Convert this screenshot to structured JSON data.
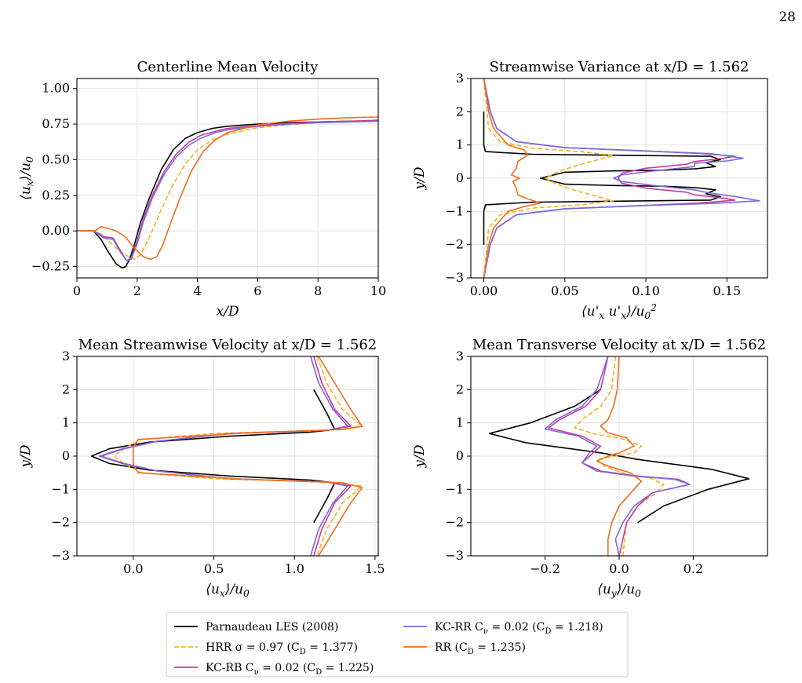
{
  "page_number": "28",
  "chart_data": [
    {
      "type": "line",
      "title": "Centerline Mean Velocity",
      "xlabel": "x/D",
      "ylabel": "⟨u_x⟩/u_0",
      "xlim": [
        0,
        10
      ],
      "ylim": [
        -0.33,
        1.07
      ],
      "xticks": [
        0,
        2,
        4,
        6,
        8,
        10
      ],
      "xtick_labels": [
        "0",
        "2",
        "4",
        "6",
        "8",
        "10"
      ],
      "yticks": [
        -0.25,
        0.0,
        0.25,
        0.5,
        0.75,
        1.0
      ],
      "ytick_labels": [
        "−0.25",
        "0.00",
        "0.25",
        "0.50",
        "0.75",
        "1.00"
      ],
      "grid": true,
      "series": [
        {
          "key": "les",
          "x": [
            0,
            0.55,
            0.8,
            1.05,
            1.3,
            1.5,
            1.62,
            1.75,
            1.9,
            2.1,
            2.4,
            2.8,
            3.2,
            3.6,
            4.0,
            4.5,
            5.0,
            6.0,
            7.0,
            8.0,
            9.0,
            10.0
          ],
          "y": [
            0,
            0,
            -0.06,
            -0.15,
            -0.23,
            -0.26,
            -0.25,
            -0.2,
            -0.1,
            0.05,
            0.23,
            0.43,
            0.57,
            0.65,
            0.69,
            0.72,
            0.735,
            0.75,
            0.76,
            0.765,
            0.77,
            0.775
          ]
        },
        {
          "key": "hrr",
          "x": [
            0,
            0.5,
            0.8,
            1.1,
            1.4,
            1.7,
            1.9,
            2.1,
            2.3,
            2.5,
            2.8,
            3.2,
            3.6,
            4.0,
            4.5,
            5.0,
            6.0,
            7.0,
            8.0,
            9.0,
            10.0
          ],
          "y": [
            0,
            0,
            -0.02,
            -0.08,
            -0.14,
            -0.18,
            -0.2,
            -0.17,
            -0.09,
            0.0,
            0.15,
            0.33,
            0.47,
            0.57,
            0.64,
            0.68,
            0.725,
            0.745,
            0.76,
            0.77,
            0.78
          ]
        },
        {
          "key": "kcrb",
          "x": [
            0,
            0.55,
            0.9,
            1.2,
            1.45,
            1.65,
            1.8,
            2.0,
            2.2,
            2.5,
            2.9,
            3.3,
            3.7,
            4.1,
            4.6,
            5.0,
            6.0,
            7.0,
            8.0,
            9.0,
            10.0
          ],
          "y": [
            0,
            0,
            -0.04,
            -0.05,
            -0.14,
            -0.21,
            -0.19,
            -0.07,
            0.08,
            0.25,
            0.42,
            0.54,
            0.62,
            0.67,
            0.7,
            0.72,
            0.74,
            0.755,
            0.765,
            0.77,
            0.775
          ]
        },
        {
          "key": "kcrr",
          "x": [
            0,
            0.55,
            0.9,
            1.2,
            1.45,
            1.65,
            1.8,
            2.0,
            2.2,
            2.5,
            2.9,
            3.3,
            3.7,
            4.1,
            4.6,
            5.0,
            6.0,
            7.0,
            8.0,
            9.0,
            10.0
          ],
          "y": [
            0,
            0,
            -0.05,
            -0.06,
            -0.15,
            -0.21,
            -0.2,
            -0.09,
            0.06,
            0.23,
            0.4,
            0.52,
            0.6,
            0.65,
            0.69,
            0.71,
            0.735,
            0.75,
            0.76,
            0.765,
            0.77
          ]
        },
        {
          "key": "rr",
          "x": [
            0,
            0.6,
            0.8,
            1.0,
            1.3,
            1.6,
            1.9,
            2.2,
            2.45,
            2.65,
            2.85,
            3.1,
            3.4,
            3.8,
            4.2,
            4.6,
            5.0,
            6.0,
            7.0,
            8.0,
            9.0,
            10.0
          ],
          "y": [
            0,
            0,
            0.03,
            0.02,
            0.0,
            -0.04,
            -0.12,
            -0.18,
            -0.2,
            -0.18,
            -0.1,
            0.05,
            0.22,
            0.42,
            0.56,
            0.64,
            0.69,
            0.745,
            0.77,
            0.785,
            0.795,
            0.8
          ]
        }
      ]
    },
    {
      "type": "line",
      "title": "Streamwise Variance at x/D = 1.562",
      "xlabel": "⟨u'_x u'_x⟩/u_0²",
      "ylabel": "y/D",
      "xlim": [
        -0.008,
        0.175
      ],
      "ylim": [
        -3,
        3
      ],
      "xticks": [
        0.0,
        0.05,
        0.1,
        0.15
      ],
      "xtick_labels": [
        "0.00",
        "0.05",
        "0.10",
        "0.15"
      ],
      "yticks": [
        -3,
        -2,
        -1,
        0,
        1,
        2,
        3
      ],
      "ytick_labels": [
        "−3",
        "−2",
        "−1",
        "0",
        "1",
        "2",
        "3"
      ],
      "grid": true,
      "series": [
        {
          "key": "les",
          "x": [
            0,
            0,
            0.001,
            0.03,
            0.14,
            0.146,
            0.137,
            0.143,
            0.13,
            0.11,
            0.08,
            0.05,
            0.035,
            0.05,
            0.08,
            0.11,
            0.13,
            0.143,
            0.137,
            0.146,
            0.14,
            0.03,
            0.001,
            0,
            0
          ],
          "y": [
            2,
            1.0,
            0.8,
            0.72,
            0.66,
            0.56,
            0.47,
            0.35,
            0.28,
            0.24,
            0.22,
            0.18,
            0.0,
            -0.18,
            -0.22,
            -0.24,
            -0.28,
            -0.35,
            -0.47,
            -0.56,
            -0.66,
            -0.72,
            -0.8,
            -1.0,
            -2
          ]
        },
        {
          "key": "hrr",
          "x": [
            0,
            0.003,
            0.01,
            0.03,
            0.06,
            0.08,
            0.07,
            0.055,
            0.045,
            0.038,
            0.045,
            0.055,
            0.07,
            0.08,
            0.06,
            0.03,
            0.01,
            0.003,
            0
          ],
          "y": [
            3,
            1.5,
            1.1,
            0.9,
            0.8,
            0.68,
            0.55,
            0.35,
            0.18,
            0.0,
            -0.18,
            -0.35,
            -0.55,
            -0.68,
            -0.8,
            -0.9,
            -1.1,
            -1.5,
            -3
          ]
        },
        {
          "key": "kcrb",
          "x": [
            0.0,
            0.004,
            0.008,
            0.02,
            0.05,
            0.1,
            0.135,
            0.155,
            0.148,
            0.13,
            0.125,
            0.1,
            0.085,
            0.083,
            0.085,
            0.1,
            0.125,
            0.13,
            0.148,
            0.155,
            0.135,
            0.1,
            0.05,
            0.02,
            0.008,
            0.004,
            0.0
          ],
          "y": [
            3,
            2.0,
            1.5,
            1.1,
            0.92,
            0.82,
            0.74,
            0.66,
            0.6,
            0.5,
            0.42,
            0.3,
            0.15,
            0.0,
            -0.15,
            -0.3,
            -0.42,
            -0.5,
            -0.6,
            -0.66,
            -0.74,
            -0.82,
            -0.92,
            -1.1,
            -1.5,
            -2.0,
            -3
          ]
        },
        {
          "key": "kcrr",
          "x": [
            0.0,
            0.004,
            0.008,
            0.02,
            0.05,
            0.1,
            0.14,
            0.16,
            0.15,
            0.13,
            0.13,
            0.105,
            0.085,
            0.08,
            0.085,
            0.105,
            0.13,
            0.14,
            0.155,
            0.17,
            0.14,
            0.1,
            0.05,
            0.02,
            0.008,
            0.004,
            0.0
          ],
          "y": [
            3,
            2.0,
            1.5,
            1.1,
            0.92,
            0.82,
            0.74,
            0.6,
            0.52,
            0.45,
            0.35,
            0.22,
            0.1,
            0.0,
            -0.1,
            -0.22,
            -0.35,
            -0.45,
            -0.55,
            -0.68,
            -0.76,
            -0.82,
            -0.92,
            -1.1,
            -1.5,
            -2.0,
            -3
          ]
        },
        {
          "key": "rr",
          "x": [
            0,
            0.003,
            0.006,
            0.015,
            0.025,
            0.027,
            0.021,
            0.02,
            0.017,
            0.022,
            0.018,
            0.02,
            0.021,
            0.027,
            0.035,
            0.025,
            0.015,
            0.006,
            0.003,
            0
          ],
          "y": [
            3,
            2.0,
            1.5,
            1.0,
            0.85,
            0.7,
            0.5,
            0.3,
            0.1,
            0.0,
            -0.1,
            -0.3,
            -0.5,
            -0.62,
            -0.75,
            -0.85,
            -1.0,
            -1.5,
            -2.0,
            -3
          ]
        }
      ]
    },
    {
      "type": "line",
      "title": "Mean Streamwise Velocity at x/D = 1.562",
      "xlabel": "⟨u_x⟩/u_0",
      "ylabel": "y/D",
      "xlim": [
        -0.35,
        1.52
      ],
      "ylim": [
        -3,
        3
      ],
      "xticks": [
        0.0,
        0.5,
        1.0,
        1.5
      ],
      "xtick_labels": [
        "0.0",
        "0.5",
        "1.0",
        "1.5"
      ],
      "yticks": [
        -3,
        -2,
        -1,
        0,
        1,
        2,
        3
      ],
      "ytick_labels": [
        "−3",
        "−2",
        "−1",
        "0",
        "1",
        "2",
        "3"
      ],
      "grid": true,
      "series": [
        {
          "key": "les",
          "x": [
            1.12,
            1.2,
            1.25,
            1.1,
            0.6,
            0.1,
            -0.15,
            -0.26,
            -0.15,
            0.1,
            0.6,
            1.1,
            1.25,
            1.2,
            1.12
          ],
          "y": [
            2,
            1.3,
            0.8,
            0.72,
            0.6,
            0.42,
            0.22,
            0.0,
            -0.22,
            -0.42,
            -0.6,
            -0.72,
            -0.8,
            -1.3,
            -2
          ]
        },
        {
          "key": "hrr",
          "x": [
            1.14,
            1.2,
            1.3,
            1.42,
            1.2,
            0.5,
            0.05,
            -0.05,
            -0.12,
            -0.05,
            0.05,
            0.5,
            1.2,
            1.42,
            1.3,
            1.2,
            1.14
          ],
          "y": [
            3,
            2.2,
            1.4,
            0.9,
            0.78,
            0.68,
            0.5,
            0.25,
            0.0,
            -0.25,
            -0.5,
            -0.68,
            -0.78,
            -0.9,
            -1.4,
            -2.2,
            -3
          ]
        },
        {
          "key": "kcrb",
          "x": [
            1.12,
            1.17,
            1.25,
            1.35,
            1.2,
            0.6,
            0.15,
            -0.06,
            -0.2,
            -0.06,
            0.15,
            0.6,
            1.2,
            1.35,
            1.25,
            1.17,
            1.12
          ],
          "y": [
            3,
            2.2,
            1.4,
            0.9,
            0.78,
            0.68,
            0.45,
            0.22,
            0.0,
            -0.22,
            -0.45,
            -0.68,
            -0.78,
            -0.9,
            -1.4,
            -2.2,
            -3
          ]
        },
        {
          "key": "kcrr",
          "x": [
            1.1,
            1.15,
            1.24,
            1.33,
            1.2,
            0.6,
            0.15,
            -0.07,
            -0.21,
            -0.07,
            0.15,
            0.6,
            1.2,
            1.33,
            1.24,
            1.15,
            1.1
          ],
          "y": [
            3,
            2.2,
            1.4,
            0.9,
            0.78,
            0.68,
            0.45,
            0.22,
            0.0,
            -0.22,
            -0.45,
            -0.68,
            -0.78,
            -0.9,
            -1.4,
            -2.2,
            -3
          ]
        },
        {
          "key": "rr",
          "x": [
            1.15,
            1.25,
            1.35,
            1.42,
            1.3,
            0.7,
            0.03,
            0.0,
            0.0,
            0.0,
            0.03,
            0.7,
            1.3,
            1.42,
            1.35,
            1.25,
            1.15
          ],
          "y": [
            3,
            2.2,
            1.4,
            0.9,
            0.8,
            0.7,
            0.5,
            0.25,
            0.0,
            -0.25,
            -0.5,
            -0.7,
            -0.8,
            -0.95,
            -1.4,
            -2.2,
            -3
          ]
        }
      ]
    },
    {
      "type": "line",
      "title": "Mean Transverse Velocity at x/D = 1.562",
      "xlabel": "⟨u_y⟩/u_0",
      "ylabel": "y/D",
      "xlim": [
        -0.4,
        0.4
      ],
      "ylim": [
        -3,
        3
      ],
      "xticks": [
        -0.2,
        0.0,
        0.2
      ],
      "xtick_labels": [
        "−0.2",
        "0.0",
        "0.2"
      ],
      "yticks": [
        -3,
        -2,
        -1,
        0,
        1,
        2,
        3
      ],
      "ytick_labels": [
        "−3",
        "−2",
        "−1",
        "0",
        "1",
        "2",
        "3"
      ],
      "grid": true,
      "series": [
        {
          "key": "les",
          "x": [
            -0.05,
            -0.12,
            -0.24,
            -0.35,
            -0.25,
            -0.05,
            0.0,
            0.05,
            0.25,
            0.35,
            0.24,
            0.12,
            0.05
          ],
          "y": [
            2,
            1.5,
            1.0,
            0.68,
            0.4,
            0.1,
            0.0,
            -0.1,
            -0.4,
            -0.68,
            -1.0,
            -1.5,
            -2
          ]
        },
        {
          "key": "hrr",
          "x": [
            -0.01,
            -0.02,
            -0.05,
            -0.1,
            -0.12,
            -0.06,
            0.0,
            0.06,
            0.04,
            -0.01,
            -0.06,
            -0.04,
            0.02,
            0.08,
            0.12,
            0.1,
            0.05,
            0.02,
            0.01
          ],
          "y": [
            3,
            2.0,
            1.5,
            1.1,
            0.85,
            0.65,
            0.55,
            0.3,
            0.1,
            0.0,
            -0.1,
            -0.3,
            -0.55,
            -0.65,
            -0.85,
            -1.1,
            -1.5,
            -2.0,
            -3
          ]
        },
        {
          "key": "kcrb",
          "x": [
            -0.03,
            -0.05,
            -0.09,
            -0.16,
            -0.19,
            -0.1,
            -0.05,
            -0.07,
            -0.1,
            -0.05,
            0.05,
            0.16,
            0.19,
            0.09,
            0.05,
            0.02,
            0.0
          ],
          "y": [
            3,
            2.0,
            1.5,
            1.1,
            0.85,
            0.6,
            0.3,
            0.1,
            -0.2,
            -0.45,
            -0.6,
            -0.7,
            -0.85,
            -1.1,
            -1.5,
            -2.0,
            -3
          ]
        },
        {
          "key": "kcrr",
          "x": [
            -0.03,
            -0.06,
            -0.1,
            -0.17,
            -0.2,
            -0.11,
            -0.06,
            -0.08,
            -0.1,
            -0.06,
            0.04,
            0.15,
            0.19,
            0.09,
            0.04,
            0.01,
            -0.01,
            0.0
          ],
          "y": [
            3,
            2.0,
            1.5,
            1.1,
            0.82,
            0.6,
            0.3,
            0.1,
            -0.2,
            -0.45,
            -0.6,
            -0.7,
            -0.85,
            -1.1,
            -1.5,
            -2.0,
            -2.5,
            -3
          ]
        },
        {
          "key": "rr",
          "x": [
            0.0,
            -0.005,
            -0.015,
            -0.03,
            -0.05,
            -0.03,
            0.02,
            0.04,
            0.0,
            -0.03,
            -0.06,
            -0.03,
            0.03,
            0.06,
            0.04,
            0.0,
            -0.02,
            -0.03,
            -0.03
          ],
          "y": [
            3,
            2.0,
            1.5,
            1.1,
            0.9,
            0.7,
            0.55,
            0.3,
            0.1,
            0.0,
            -0.15,
            -0.3,
            -0.5,
            -0.75,
            -1.0,
            -1.5,
            -2.0,
            -2.5,
            -3
          ]
        }
      ]
    }
  ],
  "legend": {
    "placement": "bottom-center",
    "entries": [
      {
        "key": "les",
        "label": "Parnaudeau LES (2008)",
        "color": "#000000",
        "dash": "solid"
      },
      {
        "key": "hrr",
        "label": "HRR σ = 0.97 (C_D = 1.377)",
        "color": "#f5b021",
        "dash": "dashed"
      },
      {
        "key": "kcrb",
        "label": "KC-RB C_ν = 0.02 (C_D = 1.225)",
        "color": "#c83c96",
        "dash": "solid"
      },
      {
        "key": "kcrr",
        "label": "KC-RR C_ν = 0.02 (C_D = 1.218)",
        "color": "#7b68e0",
        "dash": "solid"
      },
      {
        "key": "rr",
        "label": "RR (C_D = 1.235)",
        "color": "#f06d1c",
        "dash": "solid"
      }
    ]
  }
}
